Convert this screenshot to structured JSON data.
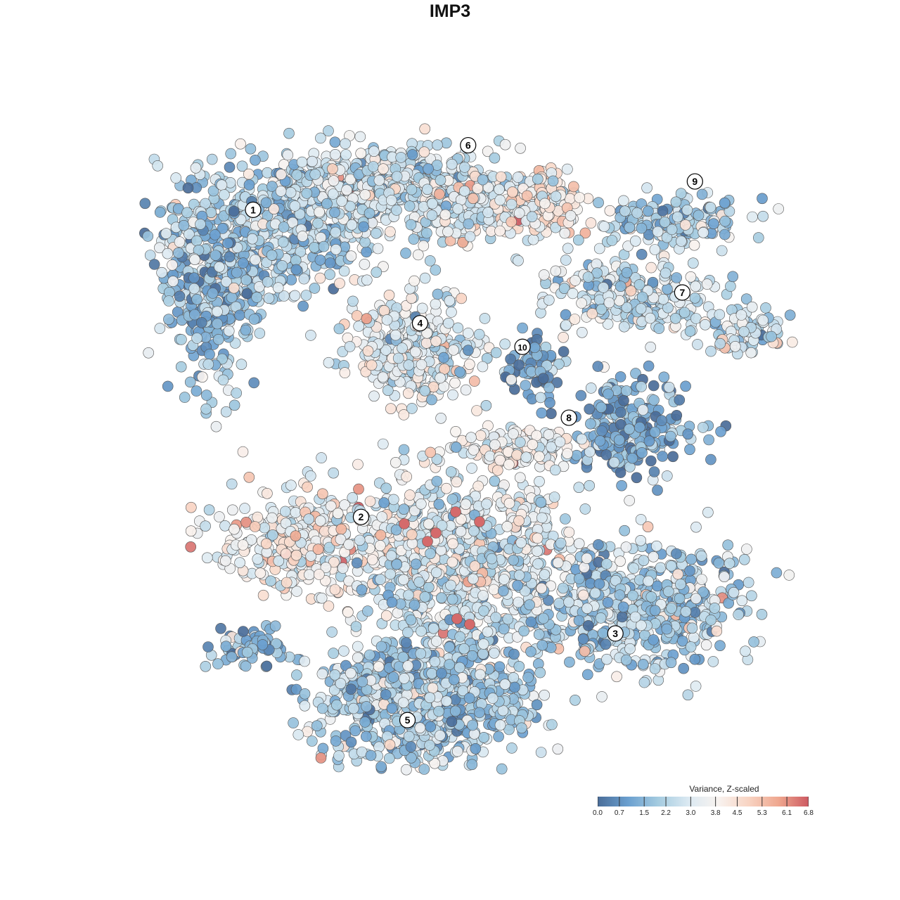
{
  "title": "IMP3",
  "chart_data": {
    "type": "scatter",
    "plot_kind": "tSNE embedding colored by gene expression",
    "gene": "IMP3",
    "point_count_estimate": 6000,
    "clusters": [
      {
        "label": "1",
        "tsne_x": -25.0,
        "tsne_y": 30.5,
        "mean_z": 2.3
      },
      {
        "label": "2",
        "tsne_x": -11.3,
        "tsne_y": -8.5,
        "mean_z": 3.7
      },
      {
        "label": "3",
        "tsne_x": 21.0,
        "tsne_y": -23.3,
        "mean_z": 2.1
      },
      {
        "label": "4",
        "tsne_x": -3.8,
        "tsne_y": 16.1,
        "mean_z": 2.9
      },
      {
        "label": "5",
        "tsne_x": -5.4,
        "tsne_y": -34.3,
        "mean_z": 2.0
      },
      {
        "label": "6",
        "tsne_x": 2.3,
        "tsne_y": 38.7,
        "mean_z": 2.9
      },
      {
        "label": "7",
        "tsne_x": 29.5,
        "tsne_y": 20.0,
        "mean_z": 2.5
      },
      {
        "label": "8",
        "tsne_x": 15.1,
        "tsne_y": 4.1,
        "mean_z": 1.3
      },
      {
        "label": "9",
        "tsne_x": 31.1,
        "tsne_y": 34.1,
        "mean_z": 2.2
      },
      {
        "label": "10",
        "tsne_x": 9.2,
        "tsne_y": 13.1,
        "mean_z": 1.2
      }
    ],
    "color_scale": {
      "title": "Variance, Z-scaled",
      "min": 0.0,
      "max": 6.8,
      "ticks": [
        "0.0",
        "0.7",
        "1.5",
        "2.2",
        "3.0",
        "3.8",
        "4.5",
        "5.3",
        "6.1",
        "6.8"
      ],
      "colors": [
        "#4a6d99",
        "#6a9fcf",
        "#a4cbe0",
        "#dbe9f2",
        "#f8f3f0",
        "#f8d4c3",
        "#efa78f",
        "#cd5a62"
      ]
    },
    "grid": false,
    "axes_visible": false,
    "legend_position": "bottom-right"
  }
}
